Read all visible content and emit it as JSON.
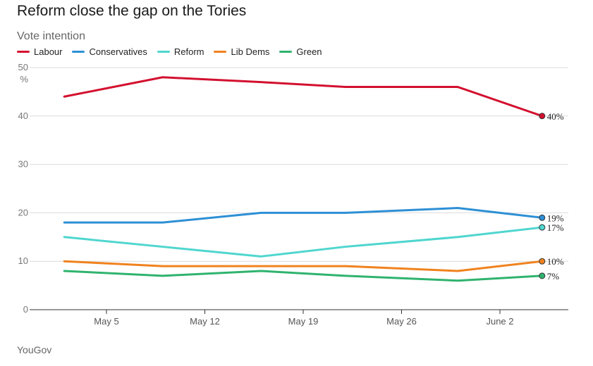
{
  "title": "Reform close the gap on the Tories",
  "subtitle": "Vote intention",
  "source": "YouGov",
  "colors": {
    "Labour": "#d3102f",
    "Conservatives": "#2d8fd5",
    "Reform": "#4fd6cf",
    "Lib Dems": "#f0821e",
    "Green": "#2fb36e"
  },
  "chart_data": {
    "type": "line",
    "title": "Reform close the gap on the Tories",
    "ylabel": "Vote intention",
    "yunit": "%",
    "ylim": [
      0,
      50
    ],
    "yticks": [
      0,
      10,
      20,
      30,
      40,
      50
    ],
    "xticks": [
      "May 5",
      "May 12",
      "May 19",
      "May 26",
      "June 2"
    ],
    "xtick_dates": [
      "2024-05-05",
      "2024-05-12",
      "2024-05-19",
      "2024-05-26",
      "2024-06-02"
    ],
    "x": [
      "2024-05-02",
      "2024-05-09",
      "2024-05-16",
      "2024-05-22",
      "2024-05-30",
      "2024-06-05"
    ],
    "grid": true,
    "legend_position": "top-left",
    "series": [
      {
        "name": "Labour",
        "values": [
          44,
          48,
          47,
          46,
          46,
          40
        ],
        "end_label": "40%"
      },
      {
        "name": "Conservatives",
        "values": [
          18,
          18,
          20,
          20,
          21,
          19
        ],
        "end_label": "19%"
      },
      {
        "name": "Reform",
        "values": [
          15,
          13,
          11,
          13,
          15,
          17
        ],
        "end_label": "17%"
      },
      {
        "name": "Lib Dems",
        "values": [
          10,
          9,
          9,
          9,
          8,
          10
        ],
        "end_label": "10%"
      },
      {
        "name": "Green",
        "values": [
          8,
          7,
          8,
          7,
          6,
          7
        ],
        "end_label": "7%"
      }
    ]
  }
}
